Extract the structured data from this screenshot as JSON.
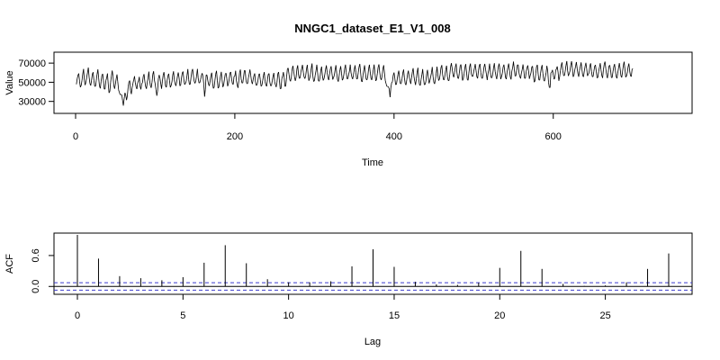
{
  "chart_data": [
    {
      "type": "line",
      "title": "NNGC1_dataset_E1_V1_008",
      "xlabel": "Time",
      "ylabel": "Value",
      "xlim": [
        0,
        745
      ],
      "ylim": [
        25000,
        72000
      ],
      "x_ticks": [
        0,
        200,
        400,
        600
      ],
      "y_ticks": [
        30000,
        50000,
        70000
      ],
      "grid": false,
      "series_color": "#000000",
      "series": [
        {
          "x_start": 1,
          "x_step": 1,
          "values": [
            47905,
            53620,
            57440,
            59155,
            50675,
            44860,
            46540,
            51980,
            58780,
            63835,
            52060,
            47025,
            50275,
            55415,
            60265,
            65285,
            55125,
            48680,
            46605,
            51850,
            58425,
            60505,
            51940,
            45860,
            45675,
            52015,
            58525,
            63360,
            54230,
            46070,
            43650,
            50620,
            57130,
            58745,
            51515,
            42795,
            42945,
            51645,
            54565,
            59160,
            48045,
            38950,
            40480,
            50185,
            56630,
            62195,
            56230,
            46670,
            43235,
            48060,
            53740,
            58085,
            50510,
            42055,
            39345,
            36955,
            37225,
            36645,
            31170,
            25665,
            32745,
            38985,
            36520,
            31405,
            35740,
            44940,
            50400,
            51775,
            41520,
            37675,
            44220,
            48815,
            52435,
            56250,
            49650,
            45130,
            42965,
            49575,
            51220,
            55635,
            45740,
            42550,
            48320,
            49615,
            56275,
            58485,
            50765,
            45430,
            43180,
            49855,
            54160,
            61070,
            52255,
            46210,
            44190,
            50080,
            58505,
            61455,
            52310,
            48075,
            42085,
            36015,
            40965,
            53870,
            57620,
            53930,
            48325,
            43230,
            51070,
            57670,
            60505,
            53080,
            46050,
            44740,
            51905,
            56810,
            58910,
            51540,
            44650,
            46455,
            50365,
            57515,
            61355,
            52600,
            48575,
            46180,
            50470,
            56395,
            60235,
            54560,
            46175,
            47015,
            54650,
            59875,
            61210,
            52270,
            47570,
            48845,
            51345,
            57590,
            63725,
            52940,
            47605,
            47975,
            55170,
            61470,
            63805,
            56425,
            50880,
            48855,
            51530,
            56765,
            63895,
            54310,
            49310,
            49500,
            52895,
            57025,
            59475,
            56030,
            48240,
            35030,
            42555,
            57685,
            57630,
            52190,
            47730,
            46250,
            51685,
            57190,
            59940,
            49840,
            43630,
            44520,
            51875,
            58700,
            61910,
            52050,
            43810,
            44960,
            51370,
            56500,
            60840,
            52360,
            44990,
            47180,
            53340,
            58560,
            59545,
            53500,
            45845,
            48600,
            53715,
            59920,
            60680,
            53170,
            48455,
            47755,
            56115,
            56395,
            62000,
            51755,
            46990,
            44145,
            51440,
            60310,
            63250,
            53250,
            49150,
            49390,
            55640,
            62370,
            62110,
            52160,
            48770,
            48500,
            54325,
            58400,
            63205,
            57390,
            51025,
            48225,
            52605,
            56980,
            59220,
            50000,
            46645,
            47435,
            51700,
            57750,
            58950,
            52550,
            45790,
            46760,
            51585,
            57300,
            60615,
            50760,
            47125,
            45695,
            52745,
            58300,
            59160,
            49845,
            46220,
            46500,
            51580,
            56385,
            59680,
            50540,
            47295,
            44985,
            50230,
            58770,
            60670,
            51830,
            43215,
            43335,
            53525,
            56455,
            60550,
            55015,
            45630,
            46015,
            55230,
            63665,
            64940,
            58695,
            52680,
            51020,
            55525,
            63730,
            67150,
            61490,
            55190,
            51530,
            55070,
            64040,
            67675,
            57905,
            53935,
            54560,
            60700,
            64500,
            68150,
            60655,
            55630,
            53790,
            56600,
            63590,
            68115,
            58780,
            51640,
            53940,
            58245,
            64620,
            69540,
            56685,
            50780,
            51660,
            57590,
            62320,
            68265,
            59820,
            51590,
            51030,
            55125,
            62385,
            66295,
            57030,
            51910,
            53565,
            57895,
            63520,
            67620,
            60125,
            54640,
            52275,
            58425,
            64005,
            66750,
            59220,
            52855,
            55000,
            57360,
            63130,
            67790,
            59360,
            52635,
            50650,
            56505,
            62710,
            66770,
            59655,
            52150,
            53515,
            58460,
            64410,
            68340,
            60115,
            53550,
            53665,
            58135,
            61655,
            68370,
            59855,
            55405,
            53325,
            57675,
            63070,
            67745,
            60475,
            53465,
            53540,
            59955,
            65860,
            69120,
            60260,
            51200,
            50450,
            57210,
            62755,
            67690,
            59775,
            53040,
            52485,
            56080,
            63700,
            68335,
            61140,
            54050,
            52375,
            57680,
            63245,
            68395,
            59820,
            51500,
            52610,
            59100,
            65650,
            68670,
            60280,
            54285,
            52450,
            56510,
            63980,
            67780,
            59790,
            51635,
            48440,
            45690,
            45670,
            45120,
            42820,
            34430,
            44315,
            49480,
            50680,
            57445,
            60120,
            54080,
            47450,
            47895,
            53250,
            58715,
            62100,
            53460,
            48410,
            48760,
            53400,
            59720,
            63250,
            54880,
            48580,
            47100,
            52560,
            58610,
            62100,
            56060,
            51810,
            48335,
            54780,
            60820,
            64670,
            56170,
            51040,
            47180,
            53540,
            60680,
            65060,
            53790,
            47365,
            46660,
            53020,
            58030,
            63660,
            53940,
            47390,
            47670,
            50950,
            58880,
            62875,
            55160,
            48855,
            51660,
            55575,
            59990,
            65895,
            55895,
            49825,
            48300,
            53235,
            59575,
            66235,
            57950,
            51715,
            53175,
            58465,
            65570,
            67890,
            58155,
            52825,
            52520,
            57905,
            63410,
            67280,
            56060,
            51855,
            51735,
            58055,
            65980,
            69915,
            64445,
            58030,
            55155,
            60015,
            66105,
            69470,
            60155,
            54525,
            53800,
            59635,
            66860,
            68595,
            61345,
            51870,
            53610,
            59050,
            65520,
            68970,
            61185,
            52830,
            52025,
            59710,
            66610,
            69490,
            58700,
            56300,
            56205,
            60840,
            64880,
            69005,
            62200,
            55695,
            54040,
            61930,
            67420,
            69120,
            59870,
            54700,
            53950,
            59000,
            66070,
            69205,
            63265,
            58580,
            52360,
            58945,
            63265,
            69400,
            60445,
            54770,
            54700,
            58535,
            65335,
            69830,
            61370,
            56495,
            53325,
            59825,
            66155,
            69455,
            63200,
            53180,
            55730,
            59200,
            65840,
            68395,
            62095,
            55030,
            53240,
            60660,
            65720,
            69460,
            62545,
            55460,
            52990,
            61745,
            65370,
            71605,
            64345,
            56585,
            56530,
            62465,
            68265,
            68030,
            59745,
            55835,
            53985,
            59800,
            63345,
            68505,
            62005,
            54025,
            54150,
            61125,
            65060,
            67545,
            61890,
            53630,
            56930,
            59750,
            65935,
            66820,
            57235,
            50150,
            51305,
            59070,
            66435,
            68230,
            58820,
            52290,
            52250,
            59190,
            64945,
            67930,
            58935,
            52300,
            51145,
            55525,
            60020,
            67115,
            62120,
            50240,
            44640,
            44385,
            59830,
            60335,
            62885,
            57755,
            53155,
            54355,
            62290,
            64025,
            66505,
            60825,
            51540,
            55645,
            61995,
            67675,
            70695,
            62235,
            56845,
            56945,
            61620,
            67645,
            72035,
            62555,
            56580,
            58960,
            61730,
            68065,
            71920,
            64730,
            55670,
            57405,
            62730,
            66505,
            71120,
            64470,
            58840,
            55785,
            62465,
            66475,
            70700,
            63635,
            56780,
            55655,
            61710,
            66765,
            70310,
            63855,
            56595,
            58410,
            59850,
            67365,
            69735,
            61390,
            55815,
            55810,
            61385,
            66785,
            68090,
            61595,
            54500,
            55010,
            61185,
            65625,
            69875,
            62785,
            56950,
            54505,
            63235,
            68805,
            71575,
            64220,
            57655,
            54295,
            59950,
            66855,
            67825,
            62790,
            54900,
            54845,
            61115,
            66255,
            69030,
            62285,
            56140,
            54075,
            59590,
            64900,
            69990,
            64440,
            56690,
            54990,
            60655,
            67420,
            71505,
            63960,
            55365,
            56450,
            59780,
            66185,
            69545,
            61690,
            56770,
            55930,
            63485,
            64235
          ]
        }
      ]
    },
    {
      "type": "bar",
      "title": "",
      "xlabel": "Lag",
      "ylabel": "ACF",
      "xlim": [
        0,
        28
      ],
      "ylim": [
        -0.1,
        1.0
      ],
      "x_ticks": [
        0,
        5,
        10,
        15,
        20,
        25
      ],
      "y_ticks": [
        0.0,
        0.6
      ],
      "y_tick_labels": [
        "0.0",
        "0.6"
      ],
      "grid": false,
      "confidence_bound": 0.072,
      "confidence_color": "#3b3bcc",
      "series_color": "#000000",
      "categories": [
        0,
        1,
        2,
        3,
        4,
        5,
        6,
        7,
        8,
        9,
        10,
        11,
        12,
        13,
        14,
        15,
        16,
        17,
        18,
        19,
        20,
        21,
        22,
        23,
        24,
        25,
        26,
        27,
        28
      ],
      "values": [
        1.0,
        0.54,
        0.2,
        0.16,
        0.12,
        0.18,
        0.46,
        0.8,
        0.45,
        0.14,
        0.08,
        0.08,
        0.1,
        0.39,
        0.72,
        0.38,
        0.09,
        0.04,
        0.03,
        0.07,
        0.36,
        0.69,
        0.34,
        0.05,
        0.01,
        0.02,
        0.08,
        0.34,
        0.64
      ]
    }
  ]
}
